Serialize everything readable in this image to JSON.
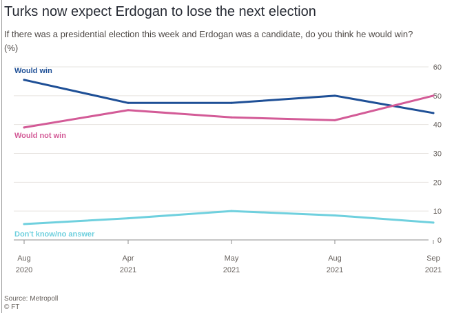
{
  "title": "Turks now expect Erdogan to lose the next election",
  "subtitle": "If there was a presidential election this week and Erdogan was a candidate, do you think he would win? (%)",
  "source": "Source: Metropoll",
  "credit": "© FT",
  "chart_data": {
    "type": "line",
    "x": [
      "Aug 2020",
      "Apr 2021",
      "May 2021",
      "Aug 2021",
      "Sep 2021"
    ],
    "x_tick_labels": [
      [
        "Aug",
        "2020"
      ],
      [
        "Apr",
        "2021"
      ],
      [
        "May",
        "2021"
      ],
      [
        "Aug",
        "2021"
      ],
      [
        "Sep",
        "2021"
      ]
    ],
    "y_ticks": [
      0,
      10,
      20,
      30,
      40,
      50,
      60
    ],
    "ylim": [
      0,
      60
    ],
    "y_axis_side": "right",
    "grid": true,
    "series": [
      {
        "name": "Would win",
        "color": "#1e4f96",
        "values": [
          55.5,
          47.5,
          47.5,
          50,
          44
        ],
        "label_position": "top-left"
      },
      {
        "name": "Would not win",
        "color": "#d35b97",
        "values": [
          39,
          45,
          42.5,
          41.5,
          50
        ],
        "label_position": "left-below-line"
      },
      {
        "name": "Don't know/no answer",
        "color": "#6fd0de",
        "values": [
          5.5,
          7.5,
          10,
          8.5,
          6
        ],
        "label_position": "bottom-left"
      }
    ]
  }
}
